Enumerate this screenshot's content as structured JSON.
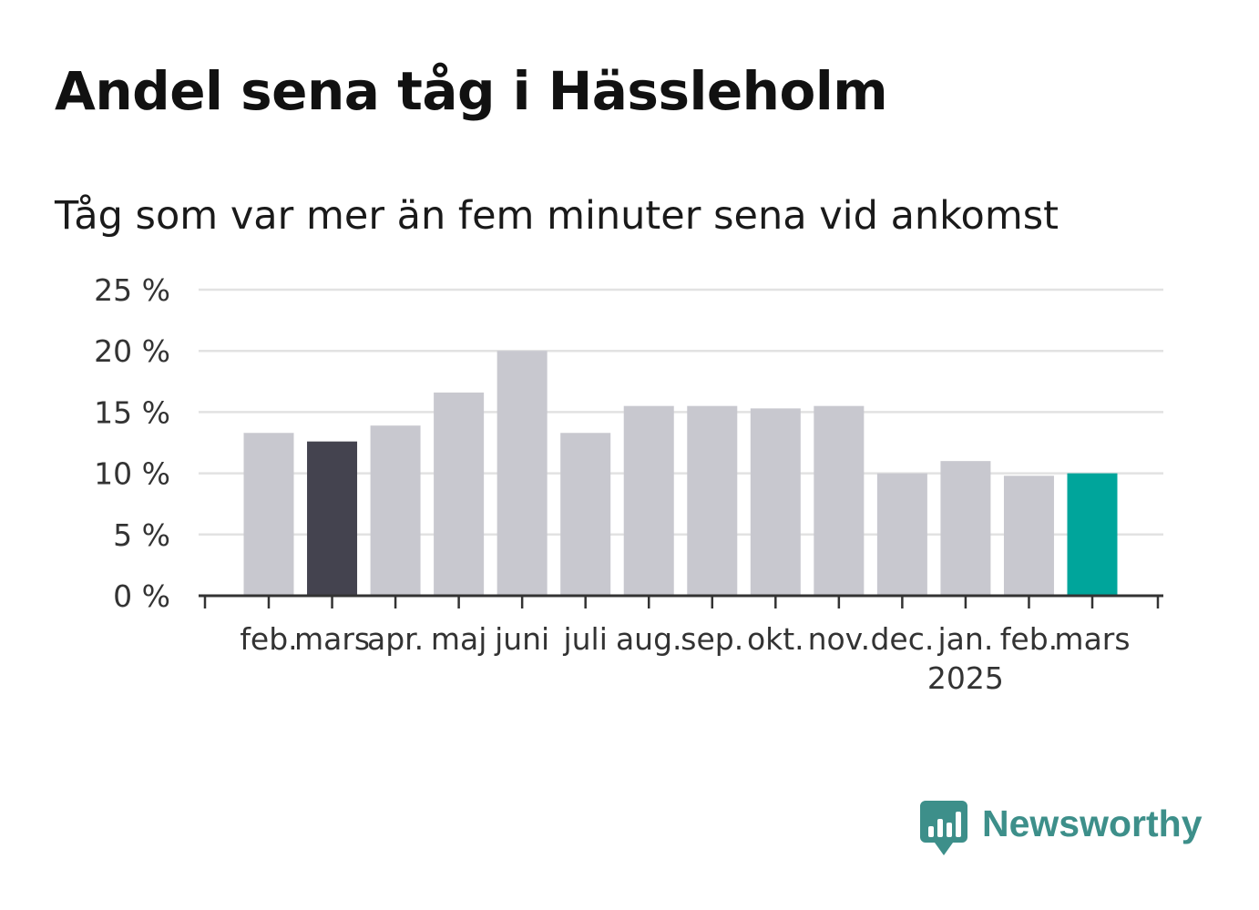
{
  "title": "Andel sena tåg i Hässleholm",
  "subtitle": "Tåg som var mer än fem minuter sena vid ankomst",
  "brand": {
    "name": "Newsworthy",
    "icon": "newsworthy-chart-bubble-icon",
    "color": "#3d8f8a"
  },
  "chart_data": {
    "type": "bar",
    "categories": [
      "feb.",
      "mars",
      "apr.",
      "maj",
      "juni",
      "juli",
      "aug.",
      "sep.",
      "okt.",
      "nov.",
      "dec.",
      "jan.",
      "feb.",
      "mars"
    ],
    "category_sublabels": [
      "",
      "",
      "",
      "",
      "",
      "",
      "",
      "",
      "",
      "",
      "",
      "2025",
      "",
      ""
    ],
    "values": [
      13.3,
      12.6,
      13.9,
      16.6,
      20.0,
      13.3,
      15.5,
      15.5,
      15.3,
      15.5,
      10.0,
      11.0,
      9.8,
      10.0
    ],
    "bar_colors": [
      "#c8c8cf",
      "#44434f",
      "#c8c8cf",
      "#c8c8cf",
      "#c8c8cf",
      "#c8c8cf",
      "#c8c8cf",
      "#c8c8cf",
      "#c8c8cf",
      "#c8c8cf",
      "#c8c8cf",
      "#c8c8cf",
      "#c8c8cf",
      "#00a59b"
    ],
    "ylim": [
      0,
      25
    ],
    "yticks": [
      0,
      5,
      10,
      15,
      20,
      25
    ],
    "ytick_labels": [
      "0 %",
      "5 %",
      "10 %",
      "15 %",
      "20 %",
      "25 %"
    ],
    "grid": true,
    "xlabel": "",
    "ylabel": ""
  }
}
